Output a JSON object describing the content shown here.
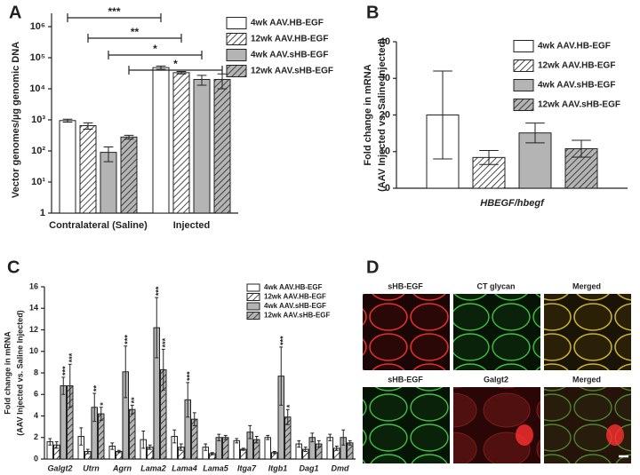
{
  "chart_data": [
    {
      "type": "bar",
      "panel": "A",
      "ylabel": [
        "Vector genomes/µg genomic DNA"
      ],
      "log_scale": true,
      "legend": "upper right",
      "categories": [
        "Contralateral (Saline)",
        "Injected"
      ],
      "ylim": [
        1,
        1000000
      ],
      "yticks": [
        1,
        {
          "value": 10,
          "label": "10¹"
        },
        {
          "value": 100,
          "label": "10²"
        },
        {
          "value": 1000,
          "label": "10³"
        },
        {
          "value": 10000,
          "label": "10⁴"
        },
        {
          "value": 100000,
          "label": "10⁵"
        },
        {
          "value": 1000000,
          "label": "10⁶"
        }
      ],
      "series": [
        {
          "name": "4wk AAV.HB-EGF",
          "color": "#ffffff",
          "hatch": false,
          "values": [
            950,
            48000
          ],
          "errors": [
            100,
            6000
          ]
        },
        {
          "name": "12wk AAV.HB-EGF",
          "color": "#ffffff",
          "hatch": true,
          "values": [
            650,
            33000
          ],
          "errors": [
            150,
            3000
          ]
        },
        {
          "name": "4wk AAV.sHB-EGF",
          "color": "#b4b4b4",
          "hatch": false,
          "values": [
            90,
            20000
          ],
          "errors": [
            45,
            7000
          ]
        },
        {
          "name": "12wk AAV.sHB-EGF",
          "color": "#b4b4b4",
          "hatch": true,
          "values": [
            280,
            20000
          ],
          "errors": [
            40,
            10000
          ]
        }
      ],
      "annotations": [
        "***",
        "**",
        "*",
        "*"
      ]
    },
    {
      "type": "bar",
      "panel": "B",
      "ylabel": [
        "Fold change in mRNA",
        "(AAV Injected vs. Saline Injected)"
      ],
      "log_scale": false,
      "legend": "upper right",
      "categories": [
        "HBEGF/hbegf"
      ],
      "ylim": [
        0,
        40
      ],
      "yticks": [
        0,
        10,
        20,
        30,
        40
      ],
      "series": [
        {
          "name": "4wk AAV.HB-EGF",
          "color": "#ffffff",
          "hatch": false,
          "values": [
            20
          ],
          "errors": [
            12
          ]
        },
        {
          "name": "12wk AAV.HB-EGF",
          "color": "#ffffff",
          "hatch": true,
          "values": [
            8.4
          ],
          "errors": [
            1.9
          ]
        },
        {
          "name": "4wk AAV.sHB-EGF",
          "color": "#b4b4b4",
          "hatch": false,
          "values": [
            15.1
          ],
          "errors": [
            2.7
          ]
        },
        {
          "name": "12wk AAV.sHB-EGF",
          "color": "#b4b4b4",
          "hatch": true,
          "values": [
            10.8
          ],
          "errors": [
            2.3
          ]
        }
      ]
    },
    {
      "type": "bar",
      "panel": "C",
      "ylabel": [
        "Fold change in mRNA",
        "(AAV Injected vs. Saline Injected)"
      ],
      "log_scale": false,
      "legend": "upper right",
      "categories": [
        "Galgt2",
        "Utrn",
        "Agrn",
        "Lama2",
        "Lama4",
        "Lama5",
        "Itga7",
        "Itgb1",
        "Dag1",
        "Dmd"
      ],
      "ylim": [
        0,
        16
      ],
      "yticks": [
        0,
        2,
        4,
        6,
        8,
        10,
        12,
        14,
        16
      ],
      "series": [
        {
          "name": "4wk AAV.HB-EGF",
          "color": "#ffffff",
          "hatch": false,
          "values": [
            1.6,
            2.1,
            1.2,
            1.8,
            2.1,
            1.1,
            1.7,
            2.0,
            1.4,
            2.0
          ],
          "errors": [
            0.3,
            0.8,
            0.3,
            0.8,
            0.6,
            0.3,
            0.2,
            0.2,
            0.3,
            0.3
          ]
        },
        {
          "name": "12wk AAV.HB-EGF",
          "color": "#ffffff",
          "hatch": true,
          "values": [
            1.3,
            0.7,
            0.7,
            1.1,
            1.1,
            0.5,
            0.9,
            0.6,
            0.9,
            1.0
          ],
          "errors": [
            0.3,
            0.2,
            0.1,
            0.2,
            0.3,
            0.1,
            0.1,
            0.1,
            0.2,
            0.2
          ]
        },
        {
          "name": "4wk AAV.sHB-EGF",
          "color": "#b4b4b4",
          "hatch": false,
          "values": [
            6.8,
            4.8,
            8.1,
            12.2,
            5.5,
            2.0,
            2.5,
            7.7,
            2.0,
            2.0
          ],
          "errors": [
            0.8,
            1.3,
            2.4,
            2.8,
            1.6,
            0.3,
            0.6,
            2.7,
            0.4,
            0.7
          ],
          "significance": [
            "***",
            "**",
            "***",
            "***",
            "***",
            null,
            null,
            "***",
            null,
            null
          ]
        },
        {
          "name": "12wk AAV.sHB-EGF",
          "color": "#b4b4b4",
          "hatch": true,
          "values": [
            6.8,
            4.2,
            4.6,
            8.3,
            3.7,
            2.0,
            1.8,
            3.9,
            1.4,
            1.5
          ],
          "errors": [
            2.0,
            0.6,
            0.4,
            1.9,
            0.6,
            0.2,
            0.3,
            0.7,
            0.3,
            0.2
          ],
          "significance": [
            "***",
            "*",
            "**",
            "***",
            null,
            null,
            null,
            "*",
            null,
            null
          ]
        }
      ]
    }
  ],
  "panel_d": {
    "panel": "D",
    "labels": [
      "sHB-EGF",
      "CT glycan",
      "Merged",
      "sHB-EGF",
      "Galgt2",
      "Merged"
    ]
  }
}
